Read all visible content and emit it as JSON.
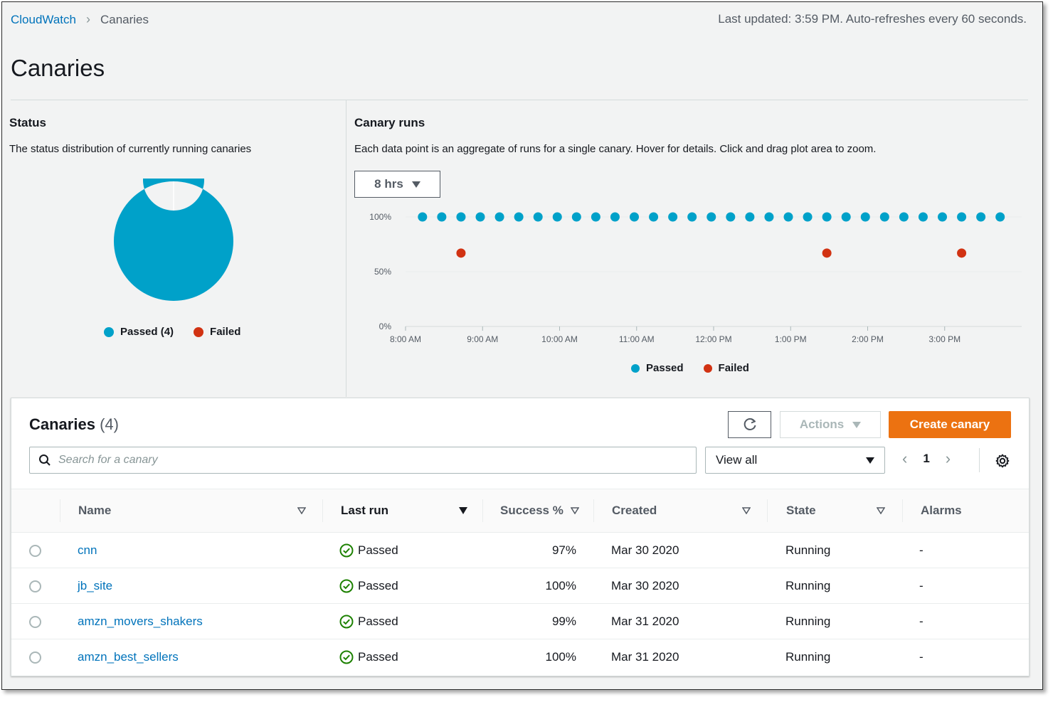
{
  "breadcrumb": {
    "root": "CloudWatch",
    "current": "Canaries"
  },
  "last_updated": "Last updated: 3:59 PM. Auto-refreshes every 60 seconds.",
  "page_title": "Canaries",
  "status": {
    "title": "Status",
    "description": "The status distribution of currently running canaries",
    "legend": [
      {
        "label": "Passed (4)",
        "color": "#00a1c9"
      },
      {
        "label": "Failed",
        "color": "#d13212"
      }
    ],
    "chart_data": {
      "type": "pie",
      "labels": [
        "Passed",
        "Failed"
      ],
      "values": [
        4,
        0
      ],
      "colors": [
        "#00a1c9",
        "#d13212"
      ]
    }
  },
  "runs": {
    "title": "Canary runs",
    "description": "Each data point is an aggregate of runs for a single canary. Hover for details. Click and drag plot area to zoom.",
    "range_label": "8 hrs",
    "legend": [
      {
        "label": "Passed",
        "color": "#00a1c9"
      },
      {
        "label": "Failed",
        "color": "#d13212"
      }
    ],
    "chart_data": {
      "type": "scatter",
      "x_ticks": [
        "8:00 AM",
        "9:00 AM",
        "10:00 AM",
        "11:00 AM",
        "12:00 PM",
        "1:00 PM",
        "2:00 PM",
        "3:00 PM"
      ],
      "y_ticks": [
        "100%",
        "50%",
        "0%"
      ],
      "ylim": [
        0,
        100
      ],
      "xlim_hours": [
        8,
        16
      ],
      "series": [
        {
          "name": "Passed",
          "color": "#00a1c9",
          "x_hours": [
            8.22,
            8.47,
            8.72,
            8.97,
            9.22,
            9.47,
            9.72,
            9.97,
            10.22,
            10.47,
            10.72,
            10.97,
            11.22,
            11.47,
            11.72,
            11.97,
            12.22,
            12.47,
            12.72,
            12.97,
            13.22,
            13.47,
            13.72,
            13.97,
            14.22,
            14.47,
            14.72,
            14.97,
            15.22,
            15.47,
            15.72
          ],
          "y": [
            100,
            100,
            100,
            100,
            100,
            100,
            100,
            100,
            100,
            100,
            100,
            100,
            100,
            100,
            100,
            100,
            100,
            100,
            100,
            100,
            100,
            100,
            100,
            100,
            100,
            100,
            100,
            100,
            100,
            100,
            100
          ]
        },
        {
          "name": "Failed",
          "color": "#d13212",
          "x_hours": [
            8.72,
            13.47,
            15.22
          ],
          "y": [
            67,
            67,
            67
          ]
        }
      ]
    }
  },
  "table": {
    "title": "Canaries",
    "count": "(4)",
    "actions_label": "Actions",
    "create_label": "Create canary",
    "search_placeholder": "Search for a canary",
    "filter_value": "View all",
    "page_number": "1",
    "columns": {
      "name": "Name",
      "last_run": "Last run",
      "success": "Success %",
      "created": "Created",
      "state": "State",
      "alarms": "Alarms"
    },
    "rows": [
      {
        "name": "cnn",
        "last_run": "Passed",
        "success": "97%",
        "created": "Mar 30 2020",
        "state": "Running",
        "alarms": "-"
      },
      {
        "name": "jb_site",
        "last_run": "Passed",
        "success": "100%",
        "created": "Mar 30 2020",
        "state": "Running",
        "alarms": "-"
      },
      {
        "name": "amzn_movers_shakers",
        "last_run": "Passed",
        "success": "99%",
        "created": "Mar 31 2020",
        "state": "Running",
        "alarms": "-"
      },
      {
        "name": "amzn_best_sellers",
        "last_run": "Passed",
        "success": "100%",
        "created": "Mar 31 2020",
        "state": "Running",
        "alarms": "-"
      }
    ]
  }
}
